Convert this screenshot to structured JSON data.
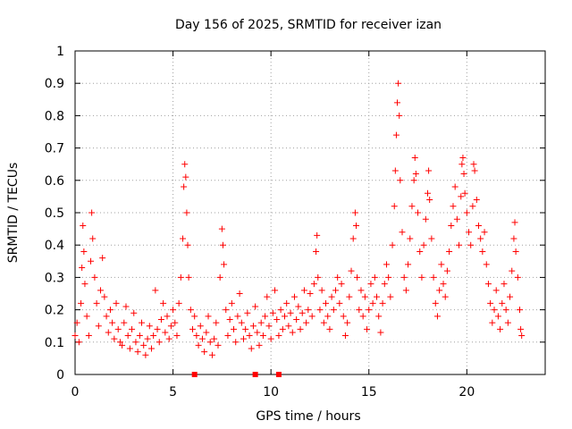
{
  "chart_data": {
    "type": "scatter",
    "title": "Day 156 of 2025, SRMTID for receiver izan",
    "xlabel": "GPS time / hours",
    "ylabel": "SRMTID / TECUs",
    "xlim": [
      0,
      24
    ],
    "ylim": [
      0,
      1
    ],
    "x_ticks": [
      "0",
      "5",
      "10",
      "15",
      "20"
    ],
    "y_ticks": [
      "0",
      "0.1",
      "0.2",
      "0.3",
      "0.4",
      "0.5",
      "0.6",
      "0.7",
      "0.8",
      "0.9",
      "1"
    ],
    "grid": true,
    "marker": "plus",
    "color": "#ff0000",
    "series": [
      {
        "name": "SRMTID",
        "points": [
          [
            0.0,
            0.12
          ],
          [
            0.1,
            0.16
          ],
          [
            0.2,
            0.1
          ],
          [
            0.3,
            0.22
          ],
          [
            0.35,
            0.33
          ],
          [
            0.4,
            0.46
          ],
          [
            0.45,
            0.38
          ],
          [
            0.5,
            0.28
          ],
          [
            0.6,
            0.18
          ],
          [
            0.7,
            0.12
          ],
          [
            0.8,
            0.35
          ],
          [
            0.85,
            0.5
          ],
          [
            0.9,
            0.42
          ],
          [
            1.0,
            0.3
          ],
          [
            1.1,
            0.22
          ],
          [
            1.2,
            0.15
          ],
          [
            1.3,
            0.26
          ],
          [
            1.4,
            0.36
          ],
          [
            1.5,
            0.24
          ],
          [
            1.6,
            0.18
          ],
          [
            1.7,
            0.13
          ],
          [
            1.8,
            0.2
          ],
          [
            1.9,
            0.16
          ],
          [
            2.0,
            0.11
          ],
          [
            2.1,
            0.22
          ],
          [
            2.2,
            0.14
          ],
          [
            2.3,
            0.1
          ],
          [
            2.4,
            0.09
          ],
          [
            2.5,
            0.16
          ],
          [
            2.6,
            0.21
          ],
          [
            2.7,
            0.12
          ],
          [
            2.8,
            0.08
          ],
          [
            2.9,
            0.14
          ],
          [
            3.0,
            0.19
          ],
          [
            3.1,
            0.1
          ],
          [
            3.2,
            0.07
          ],
          [
            3.3,
            0.12
          ],
          [
            3.4,
            0.16
          ],
          [
            3.5,
            0.09
          ],
          [
            3.6,
            0.06
          ],
          [
            3.7,
            0.11
          ],
          [
            3.8,
            0.15
          ],
          [
            3.9,
            0.08
          ],
          [
            4.0,
            0.12
          ],
          [
            4.1,
            0.26
          ],
          [
            4.2,
            0.14
          ],
          [
            4.3,
            0.1
          ],
          [
            4.4,
            0.17
          ],
          [
            4.5,
            0.22
          ],
          [
            4.6,
            0.13
          ],
          [
            4.7,
            0.18
          ],
          [
            4.8,
            0.11
          ],
          [
            4.9,
            0.15
          ],
          [
            5.0,
            0.2
          ],
          [
            5.1,
            0.16
          ],
          [
            5.2,
            0.12
          ],
          [
            5.3,
            0.22
          ],
          [
            5.4,
            0.3
          ],
          [
            5.5,
            0.42
          ],
          [
            5.55,
            0.58
          ],
          [
            5.6,
            0.65
          ],
          [
            5.65,
            0.61
          ],
          [
            5.7,
            0.5
          ],
          [
            5.75,
            0.4
          ],
          [
            5.8,
            0.3
          ],
          [
            5.9,
            0.2
          ],
          [
            6.0,
            0.14
          ],
          [
            6.1,
            0.18
          ],
          [
            6.2,
            0.12
          ],
          [
            6.3,
            0.09
          ],
          [
            6.4,
            0.15
          ],
          [
            6.5,
            0.11
          ],
          [
            6.6,
            0.07
          ],
          [
            6.7,
            0.13
          ],
          [
            6.8,
            0.18
          ],
          [
            6.9,
            0.1
          ],
          [
            7.0,
            0.06
          ],
          [
            7.1,
            0.11
          ],
          [
            7.2,
            0.16
          ],
          [
            7.3,
            0.09
          ],
          [
            7.4,
            0.3
          ],
          [
            7.5,
            0.45
          ],
          [
            7.55,
            0.4
          ],
          [
            7.6,
            0.34
          ],
          [
            7.7,
            0.2
          ],
          [
            7.8,
            0.12
          ],
          [
            7.9,
            0.17
          ],
          [
            8.0,
            0.22
          ],
          [
            8.1,
            0.14
          ],
          [
            8.2,
            0.1
          ],
          [
            8.3,
            0.18
          ],
          [
            8.4,
            0.25
          ],
          [
            8.5,
            0.16
          ],
          [
            8.6,
            0.11
          ],
          [
            8.7,
            0.14
          ],
          [
            8.8,
            0.19
          ],
          [
            8.9,
            0.12
          ],
          [
            9.0,
            0.08
          ],
          [
            9.1,
            0.15
          ],
          [
            9.2,
            0.21
          ],
          [
            9.3,
            0.13
          ],
          [
            9.4,
            0.09
          ],
          [
            9.5,
            0.16
          ],
          [
            9.6,
            0.12
          ],
          [
            9.7,
            0.18
          ],
          [
            9.8,
            0.24
          ],
          [
            9.9,
            0.15
          ],
          [
            10.0,
            0.11
          ],
          [
            10.1,
            0.19
          ],
          [
            10.2,
            0.26
          ],
          [
            10.3,
            0.17
          ],
          [
            10.4,
            0.12
          ],
          [
            10.5,
            0.2
          ],
          [
            10.6,
            0.14
          ],
          [
            10.7,
            0.18
          ],
          [
            10.8,
            0.22
          ],
          [
            10.9,
            0.15
          ],
          [
            11.0,
            0.19
          ],
          [
            11.1,
            0.13
          ],
          [
            11.2,
            0.24
          ],
          [
            11.3,
            0.17
          ],
          [
            11.4,
            0.21
          ],
          [
            11.5,
            0.14
          ],
          [
            11.6,
            0.19
          ],
          [
            11.7,
            0.26
          ],
          [
            11.8,
            0.16
          ],
          [
            11.9,
            0.2
          ],
          [
            12.0,
            0.25
          ],
          [
            12.1,
            0.18
          ],
          [
            12.2,
            0.28
          ],
          [
            12.3,
            0.38
          ],
          [
            12.35,
            0.43
          ],
          [
            12.4,
            0.3
          ],
          [
            12.5,
            0.2
          ],
          [
            12.6,
            0.26
          ],
          [
            12.7,
            0.16
          ],
          [
            12.8,
            0.22
          ],
          [
            12.9,
            0.18
          ],
          [
            13.0,
            0.14
          ],
          [
            13.1,
            0.24
          ],
          [
            13.2,
            0.2
          ],
          [
            13.3,
            0.26
          ],
          [
            13.4,
            0.3
          ],
          [
            13.5,
            0.22
          ],
          [
            13.6,
            0.28
          ],
          [
            13.7,
            0.18
          ],
          [
            13.8,
            0.12
          ],
          [
            13.9,
            0.16
          ],
          [
            14.0,
            0.24
          ],
          [
            14.1,
            0.32
          ],
          [
            14.2,
            0.42
          ],
          [
            14.3,
            0.5
          ],
          [
            14.35,
            0.46
          ],
          [
            14.4,
            0.3
          ],
          [
            14.5,
            0.2
          ],
          [
            14.6,
            0.26
          ],
          [
            14.7,
            0.18
          ],
          [
            14.8,
            0.24
          ],
          [
            14.9,
            0.14
          ],
          [
            15.0,
            0.2
          ],
          [
            15.1,
            0.28
          ],
          [
            15.2,
            0.22
          ],
          [
            15.3,
            0.3
          ],
          [
            15.4,
            0.24
          ],
          [
            15.5,
            0.18
          ],
          [
            15.6,
            0.13
          ],
          [
            15.7,
            0.22
          ],
          [
            15.8,
            0.28
          ],
          [
            15.9,
            0.34
          ],
          [
            16.0,
            0.3
          ],
          [
            16.1,
            0.24
          ],
          [
            16.2,
            0.4
          ],
          [
            16.3,
            0.52
          ],
          [
            16.35,
            0.63
          ],
          [
            16.4,
            0.74
          ],
          [
            16.45,
            0.84
          ],
          [
            16.5,
            0.9
          ],
          [
            16.55,
            0.8
          ],
          [
            16.6,
            0.6
          ],
          [
            16.7,
            0.44
          ],
          [
            16.8,
            0.3
          ],
          [
            16.9,
            0.26
          ],
          [
            17.0,
            0.34
          ],
          [
            17.1,
            0.42
          ],
          [
            17.2,
            0.52
          ],
          [
            17.3,
            0.6
          ],
          [
            17.35,
            0.67
          ],
          [
            17.4,
            0.62
          ],
          [
            17.5,
            0.5
          ],
          [
            17.6,
            0.38
          ],
          [
            17.7,
            0.3
          ],
          [
            17.8,
            0.4
          ],
          [
            17.9,
            0.48
          ],
          [
            18.0,
            0.56
          ],
          [
            18.05,
            0.63
          ],
          [
            18.1,
            0.54
          ],
          [
            18.2,
            0.42
          ],
          [
            18.3,
            0.3
          ],
          [
            18.4,
            0.22
          ],
          [
            18.5,
            0.18
          ],
          [
            18.6,
            0.26
          ],
          [
            18.7,
            0.34
          ],
          [
            18.8,
            0.28
          ],
          [
            18.9,
            0.24
          ],
          [
            19.0,
            0.32
          ],
          [
            19.1,
            0.38
          ],
          [
            19.2,
            0.46
          ],
          [
            19.3,
            0.52
          ],
          [
            19.4,
            0.58
          ],
          [
            19.5,
            0.48
          ],
          [
            19.6,
            0.4
          ],
          [
            19.7,
            0.55
          ],
          [
            19.75,
            0.65
          ],
          [
            19.8,
            0.67
          ],
          [
            19.85,
            0.62
          ],
          [
            19.9,
            0.56
          ],
          [
            20.0,
            0.5
          ],
          [
            20.1,
            0.44
          ],
          [
            20.2,
            0.4
          ],
          [
            20.3,
            0.52
          ],
          [
            20.35,
            0.65
          ],
          [
            20.4,
            0.63
          ],
          [
            20.5,
            0.54
          ],
          [
            20.6,
            0.46
          ],
          [
            20.7,
            0.42
          ],
          [
            20.8,
            0.38
          ],
          [
            20.9,
            0.44
          ],
          [
            21.0,
            0.34
          ],
          [
            21.1,
            0.28
          ],
          [
            21.2,
            0.22
          ],
          [
            21.3,
            0.16
          ],
          [
            21.4,
            0.2
          ],
          [
            21.5,
            0.26
          ],
          [
            21.6,
            0.18
          ],
          [
            21.7,
            0.14
          ],
          [
            21.8,
            0.22
          ],
          [
            21.9,
            0.28
          ],
          [
            22.0,
            0.2
          ],
          [
            22.1,
            0.16
          ],
          [
            22.2,
            0.24
          ],
          [
            22.3,
            0.32
          ],
          [
            22.4,
            0.42
          ],
          [
            22.45,
            0.47
          ],
          [
            22.5,
            0.38
          ],
          [
            22.6,
            0.3
          ],
          [
            22.7,
            0.2
          ],
          [
            22.75,
            0.14
          ],
          [
            22.8,
            0.12
          ]
        ]
      }
    ],
    "x_axis_markers": [
      6.1,
      9.2,
      10.4
    ]
  }
}
